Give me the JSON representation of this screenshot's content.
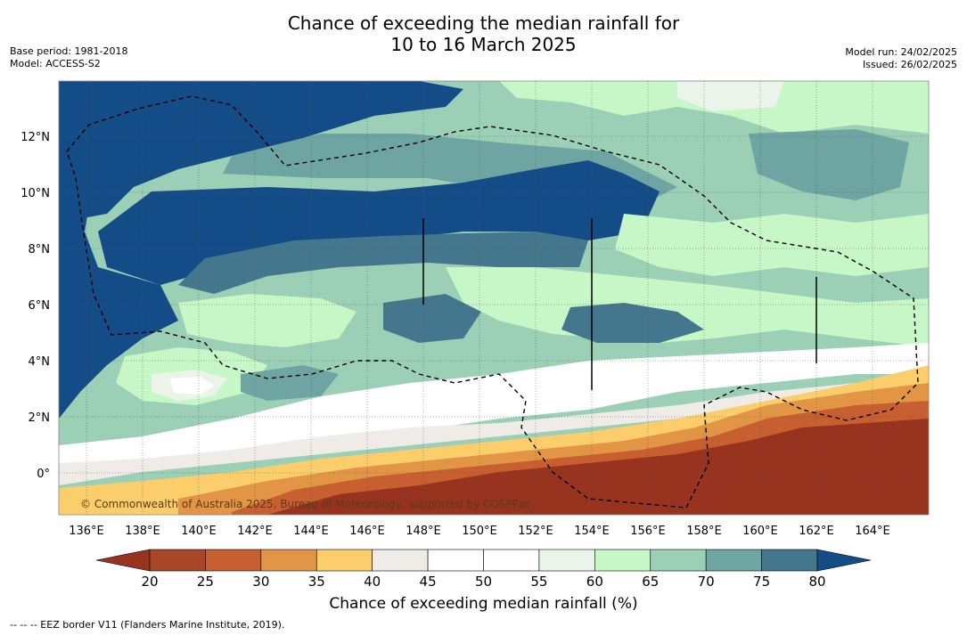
{
  "title": {
    "line1": "Chance of exceeding the median rainfall for",
    "line2": "10 to 16 March 2025"
  },
  "meta_left": {
    "base_period": "Base period: 1981-2018",
    "model": "Model: ACCESS-S2"
  },
  "meta_right": {
    "model_run": "Model run: 24/02/2025",
    "issued": "Issued: 26/02/2025"
  },
  "map": {
    "lon_labels": [
      "136°E",
      "138°E",
      "140°E",
      "142°E",
      "144°E",
      "146°E",
      "148°E",
      "150°E",
      "152°E",
      "154°E",
      "156°E",
      "158°E",
      "160°E",
      "162°E",
      "164°E"
    ],
    "lat_labels": [
      "12°N",
      "10°N",
      "8°N",
      "6°N",
      "4°N",
      "2°N",
      "0°"
    ],
    "copyright": "© Commonwealth of Australia 2025, Bureau of Meteorology, supported by COSPPac"
  },
  "colorbar": {
    "ticks": [
      "20",
      "25",
      "30",
      "35",
      "40",
      "45",
      "50",
      "55",
      "60",
      "65",
      "70",
      "75",
      "80"
    ],
    "colors": [
      "#97331f",
      "#ab4729",
      "#c75f31",
      "#e19545",
      "#fcce6b",
      "#efebe7",
      "#ffffff",
      "#ffffff",
      "#ebf4e9",
      "#c7f7c7",
      "#9bcfb6",
      "#6ea4a2",
      "#44778d",
      "#144c88"
    ],
    "label": "Chance of exceeding median rainfall (%)"
  },
  "footnote": "-- -- -- EEZ border V11 (Flanders Marine Institute, 2019)."
}
